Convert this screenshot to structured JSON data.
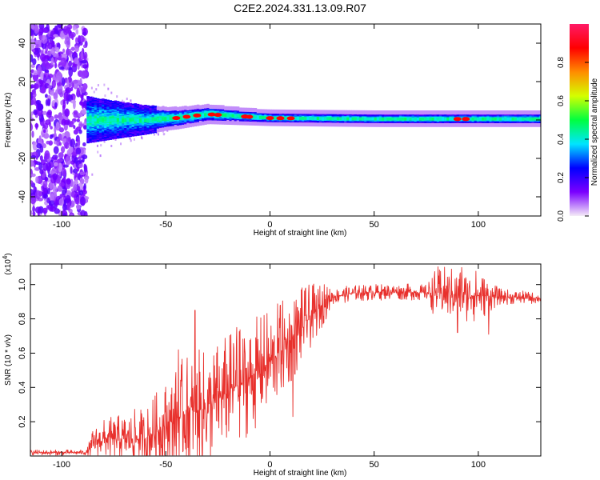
{
  "title": "C2E2.2024.331.13.09.R07",
  "chart_data": [
    {
      "type": "heatmap",
      "xlabel": "Height of straight line (km)",
      "ylabel": "Frequency (Hz)",
      "xlim": [
        -115,
        130
      ],
      "ylim": [
        -50,
        50
      ],
      "x_ticks": [
        -100,
        -50,
        0,
        50,
        100
      ],
      "y_ticks": [
        -40,
        -20,
        0,
        20,
        40
      ],
      "colorbar": {
        "label": "Normalized spectral amplitude",
        "range": [
          0,
          1
        ],
        "ticks": [
          "0.0",
          "0.2",
          "0.4",
          "0.6",
          "0.8"
        ],
        "colors": [
          "#f4ecf7",
          "#7a00ff",
          "#0000ff",
          "#00e5ff",
          "#00ff40",
          "#d4ff00",
          "#ff8c00",
          "#ff0000",
          "#ff1a66"
        ]
      },
      "noise_region_x": [
        -115,
        -88
      ],
      "band_center_hz": [
        {
          "x": -88,
          "f": 0
        },
        {
          "x": -60,
          "f": 0
        },
        {
          "x": -45,
          "f": 1
        },
        {
          "x": -30,
          "f": 3
        },
        {
          "x": -15,
          "f": 2
        },
        {
          "x": 0,
          "f": 1
        },
        {
          "x": 50,
          "f": 0.5
        },
        {
          "x": 100,
          "f": 0.5
        },
        {
          "x": 130,
          "f": 0.5
        }
      ],
      "band_halfwidth_hz": [
        {
          "x": -88,
          "w": 10
        },
        {
          "x": -70,
          "w": 7
        },
        {
          "x": -50,
          "w": 4
        },
        {
          "x": -30,
          "w": 3
        },
        {
          "x": 0,
          "w": 2
        },
        {
          "x": 60,
          "w": 2
        },
        {
          "x": 100,
          "w": 2
        },
        {
          "x": 130,
          "w": 2
        }
      ],
      "hot_spots_x": [
        -45,
        -40,
        -35,
        -28,
        -25,
        -12,
        -10,
        0,
        5,
        10,
        90,
        94
      ]
    },
    {
      "type": "line",
      "xlabel": "Height of straight line (km)",
      "ylabel": "SNR (10 * v/v)",
      "y_multiplier": "(x10",
      "y_multiplier_exp": "4",
      "xlim": [
        -115,
        130
      ],
      "ylim": [
        0,
        1.12
      ],
      "x_ticks": [
        -100,
        -50,
        0,
        50,
        100
      ],
      "y_ticks": [
        0.2,
        0.4,
        0.6,
        0.8,
        1.0
      ],
      "series_color": "#e8302c",
      "baseline": [
        {
          "x": -115,
          "y": 0.02
        },
        {
          "x": -88,
          "y": 0.02
        },
        {
          "x": -84,
          "y": 0.08
        },
        {
          "x": -80,
          "y": 0.1
        },
        {
          "x": -70,
          "y": 0.1
        },
        {
          "x": -60,
          "y": 0.1
        },
        {
          "x": -50,
          "y": 0.18
        },
        {
          "x": -40,
          "y": 0.25
        },
        {
          "x": -30,
          "y": 0.28
        },
        {
          "x": -20,
          "y": 0.38
        },
        {
          "x": -10,
          "y": 0.45
        },
        {
          "x": 0,
          "y": 0.55
        },
        {
          "x": 10,
          "y": 0.68
        },
        {
          "x": 20,
          "y": 0.82
        },
        {
          "x": 30,
          "y": 0.93
        },
        {
          "x": 40,
          "y": 0.95
        },
        {
          "x": 60,
          "y": 0.96
        },
        {
          "x": 80,
          "y": 0.95
        },
        {
          "x": 95,
          "y": 0.94
        },
        {
          "x": 110,
          "y": 0.93
        },
        {
          "x": 130,
          "y": 0.92
        }
      ],
      "amplitude": [
        {
          "x": -115,
          "a": 0.01
        },
        {
          "x": -88,
          "a": 0.01
        },
        {
          "x": -85,
          "a": 0.06
        },
        {
          "x": -60,
          "a": 0.12
        },
        {
          "x": -40,
          "a": 0.22
        },
        {
          "x": -25,
          "a": 0.22
        },
        {
          "x": 0,
          "a": 0.2
        },
        {
          "x": 15,
          "a": 0.15
        },
        {
          "x": 25,
          "a": 0.08
        },
        {
          "x": 30,
          "a": 0.03
        },
        {
          "x": 75,
          "a": 0.03
        },
        {
          "x": 80,
          "a": 0.1
        },
        {
          "x": 100,
          "a": 0.1
        },
        {
          "x": 110,
          "a": 0.03
        },
        {
          "x": 130,
          "a": 0.02
        }
      ],
      "peaks": [
        {
          "x": -44,
          "y": 0.62
        },
        {
          "x": -36,
          "y": 0.85
        },
        {
          "x": -16,
          "y": 0.75
        },
        {
          "x": 5,
          "y": 0.88
        },
        {
          "x": 15,
          "y": 0.97
        },
        {
          "x": 26,
          "y": 1.0
        },
        {
          "x": 81,
          "y": 1.05
        },
        {
          "x": 92,
          "y": 1.1
        }
      ],
      "dips": [
        {
          "x": 11,
          "y": 0.23
        },
        {
          "x": 90,
          "y": 0.72
        },
        {
          "x": 105,
          "y": 0.71
        }
      ]
    }
  ]
}
